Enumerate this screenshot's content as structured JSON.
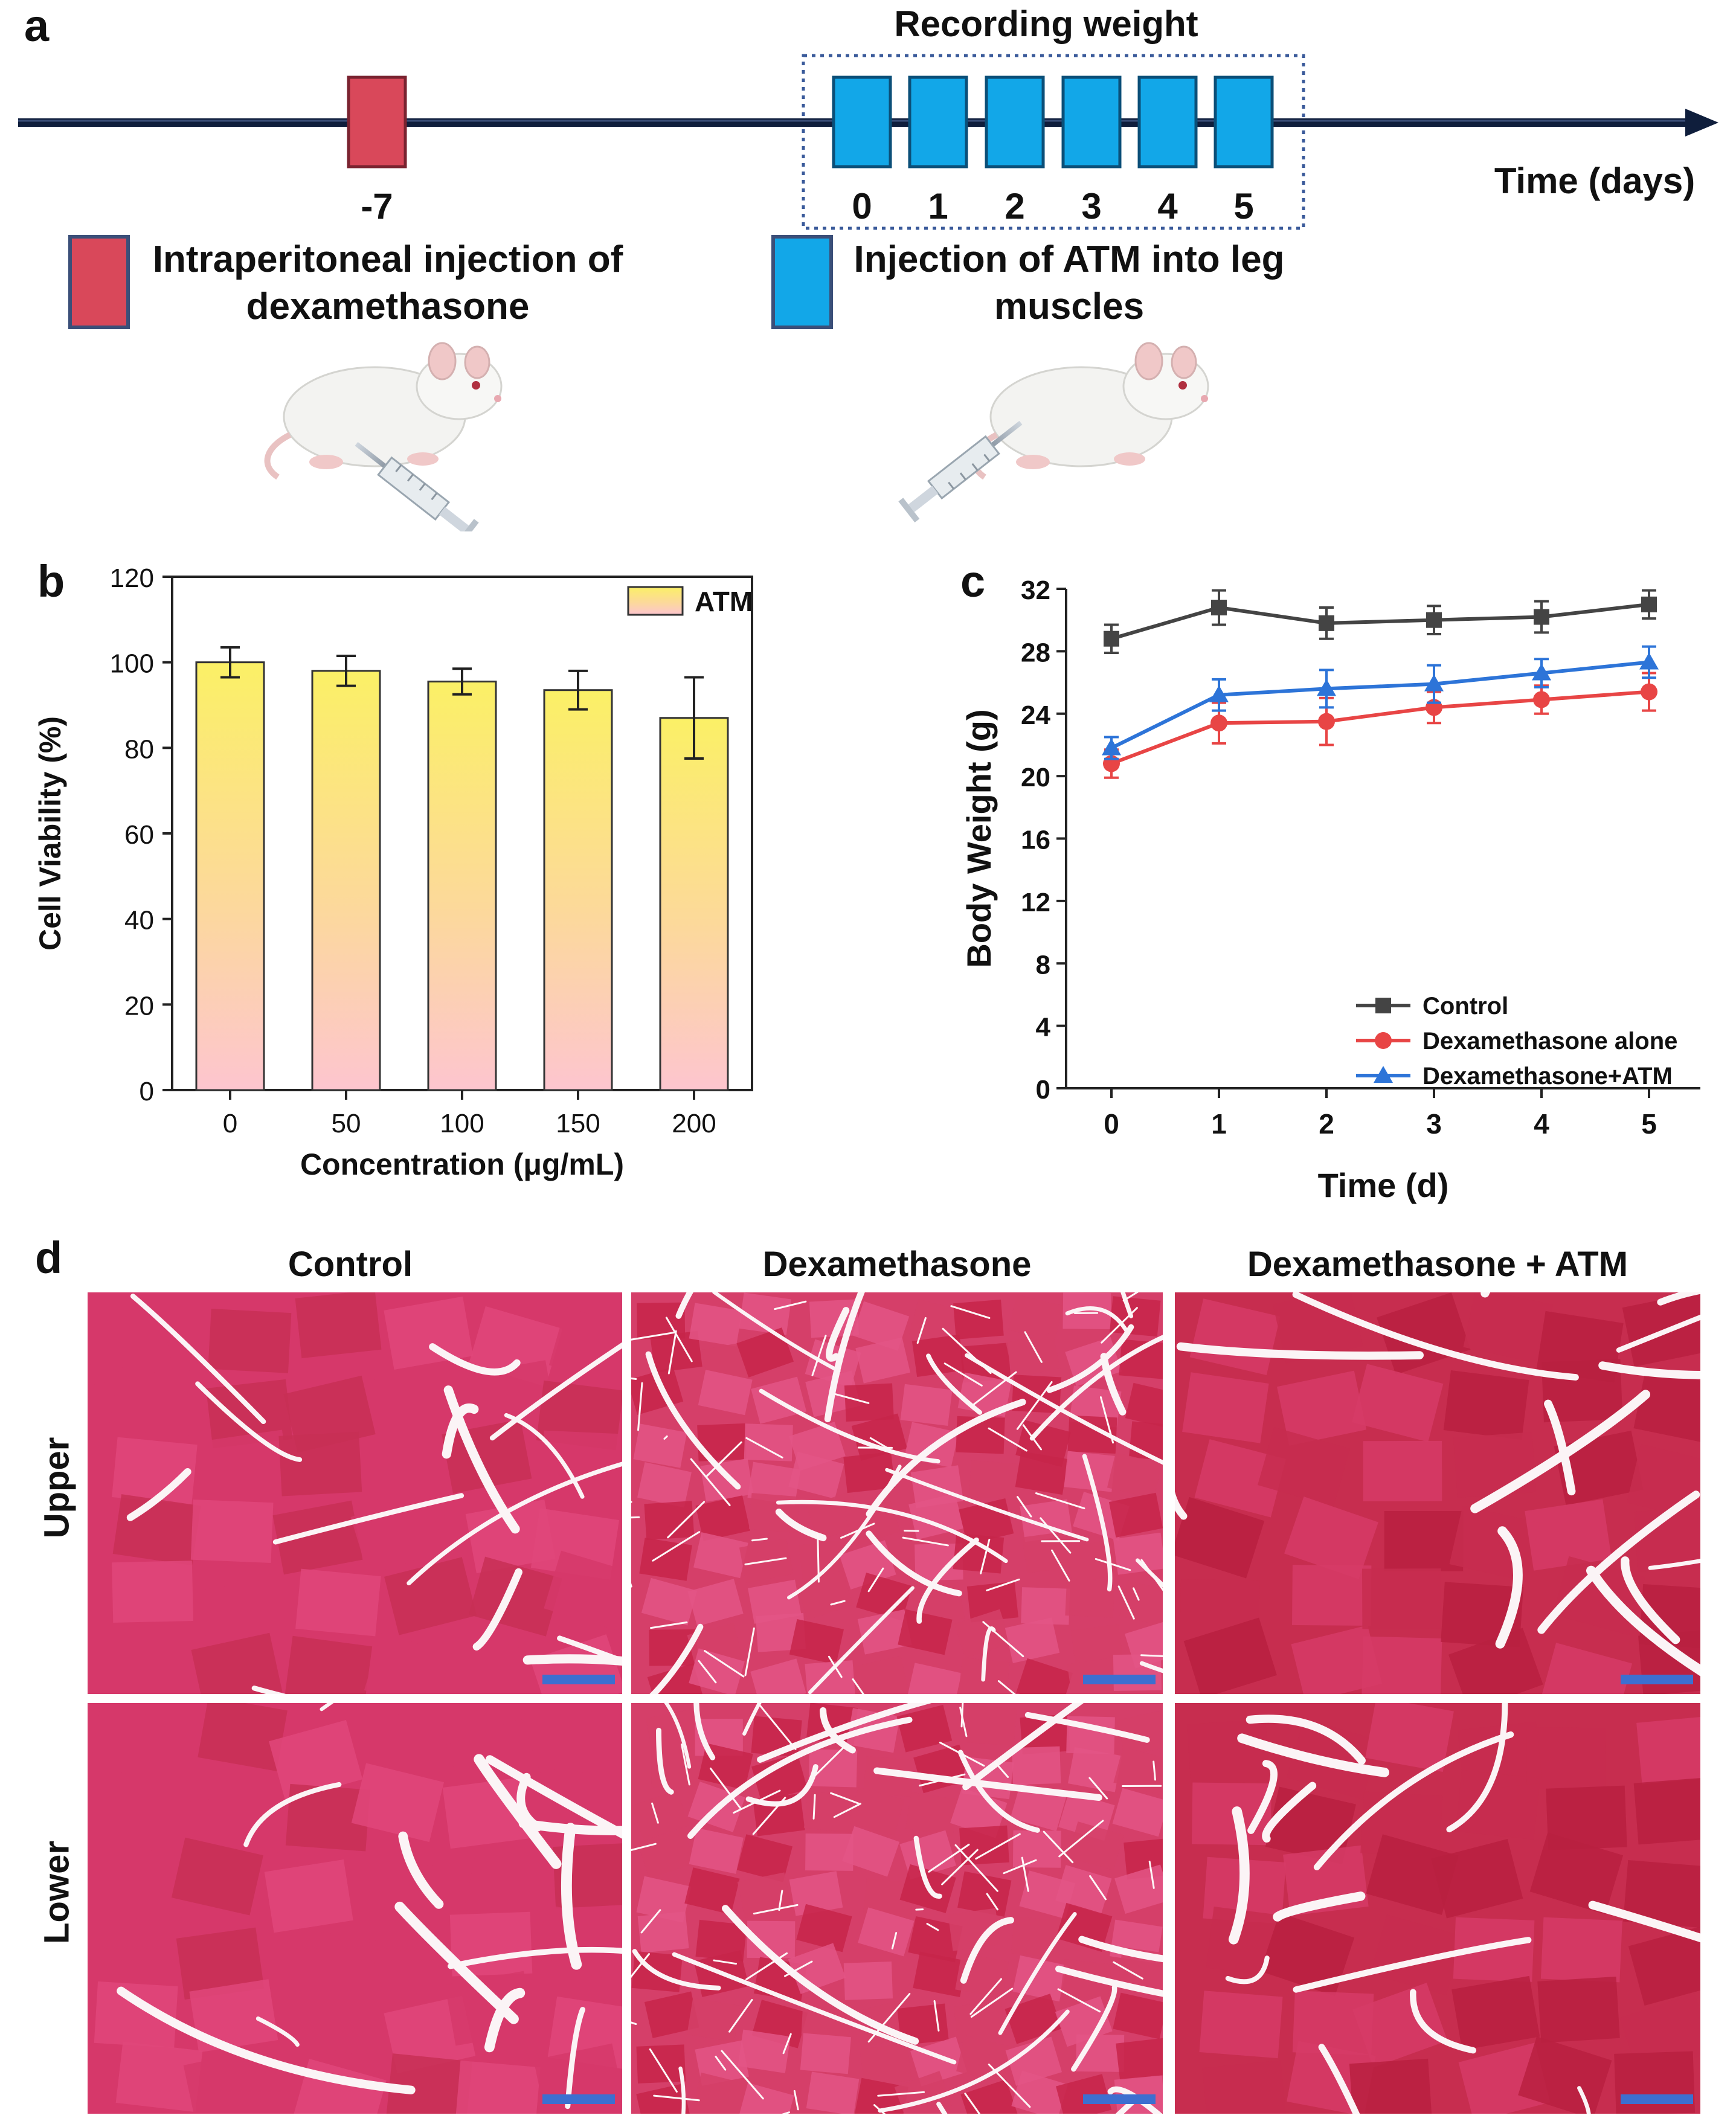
{
  "panels": {
    "a": "a",
    "b": "b",
    "c": "c",
    "d": "d"
  },
  "timeline": {
    "recording_label": "Recording weight",
    "axis_label": "Time (days)",
    "day_minus7": "-7",
    "days": [
      "0",
      "1",
      "2",
      "3",
      "4",
      "5"
    ],
    "legend_dex": "Intraperitoneal injection of dexamethasone",
    "legend_dex_lines": [
      "Intraperitoneal injection of",
      "dexamethasone"
    ],
    "legend_atm_lines": [
      "Injection of ATM into leg",
      "muscles"
    ],
    "colors": {
      "dex": "#d9485a",
      "atm": "#12a7e8",
      "axis": "#0f1e3c"
    }
  },
  "chart_data": [
    {
      "type": "bar",
      "panel": "b",
      "categories": [
        "0",
        "50",
        "100",
        "150",
        "200"
      ],
      "series": [
        {
          "name": "ATM",
          "values": [
            100,
            98,
            95.5,
            93.5,
            87
          ],
          "errors": [
            3.5,
            3.5,
            3,
            4.5,
            9.5
          ]
        }
      ],
      "xlabel": "Concentration (μg/mL)",
      "ylabel": "Cell Viability (%)",
      "ylim": [
        0,
        120
      ],
      "yticks": [
        "0",
        "20",
        "40",
        "60",
        "80",
        "100",
        "120"
      ],
      "legend": "top-right",
      "colors": {
        "top": "#fbf066",
        "bottom": "#fdc5cf"
      }
    },
    {
      "type": "line",
      "panel": "c",
      "x": [
        "0",
        "1",
        "2",
        "3",
        "4",
        "5"
      ],
      "series": [
        {
          "name": "Control",
          "values": [
            28.8,
            30.8,
            29.8,
            30.0,
            30.2,
            31.0
          ],
          "errors": [
            0.9,
            1.1,
            1.0,
            0.9,
            1.0,
            0.9
          ],
          "color": "#444444",
          "marker": "square"
        },
        {
          "name": "Dexamethasone alone",
          "values": [
            20.8,
            23.4,
            23.5,
            24.4,
            24.9,
            25.4
          ],
          "errors": [
            0.9,
            1.3,
            1.5,
            1.0,
            0.9,
            1.2
          ],
          "color": "#e84545",
          "marker": "circle"
        },
        {
          "name": "Dexamethasone+ATM",
          "values": [
            21.8,
            25.2,
            25.6,
            25.9,
            26.6,
            27.3
          ],
          "errors": [
            0.7,
            1.0,
            1.2,
            1.2,
            0.9,
            1.0
          ],
          "color": "#2d74d8",
          "marker": "triangle"
        }
      ],
      "xlabel": "Time (d)",
      "ylabel": "Body Weight (g)",
      "ylim": [
        0,
        32
      ],
      "yticks": [
        "0",
        "4",
        "8",
        "12",
        "16",
        "20",
        "24",
        "28",
        "32"
      ],
      "legend": "bottom-right"
    }
  ],
  "histology": {
    "columns": [
      "Control",
      "Dexamethasone",
      "Dexamethasone + ATM"
    ],
    "rows": [
      "Upper",
      "Lower"
    ],
    "scale_bar_color": "#3d6fd0"
  }
}
